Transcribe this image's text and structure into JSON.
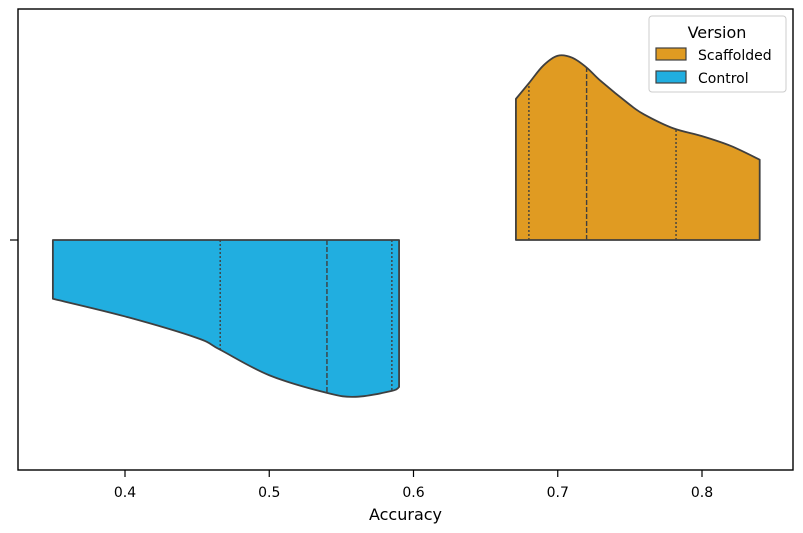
{
  "chart_data": {
    "type": "violin",
    "orientation": "horizontal",
    "split": true,
    "title": "",
    "xlabel": "Accuracy",
    "ylabel": "",
    "xlim": [
      0.326,
      0.84
    ],
    "xticks": [
      0.4,
      0.5,
      0.6,
      0.7,
      0.8
    ],
    "xtick_labels": [
      "0.4",
      "0.5",
      "0.6",
      "0.7",
      "0.8"
    ],
    "grid": false,
    "legend": {
      "title": "Version",
      "position": "top-right"
    },
    "series": [
      {
        "name": "Scaffolded",
        "color": "#E09B22",
        "side": "upper",
        "range": [
          0.671,
          0.84
        ],
        "density": [
          [
            0.671,
            0.72
          ],
          [
            0.68,
            0.8
          ],
          [
            0.69,
            0.89
          ],
          [
            0.7,
            0.94
          ],
          [
            0.71,
            0.93
          ],
          [
            0.72,
            0.88
          ],
          [
            0.73,
            0.81
          ],
          [
            0.75,
            0.69
          ],
          [
            0.76,
            0.64
          ],
          [
            0.78,
            0.57
          ],
          [
            0.8,
            0.53
          ],
          [
            0.82,
            0.48
          ],
          [
            0.84,
            0.41
          ]
        ],
        "quartiles": [
          0.68,
          0.72,
          0.782
        ]
      },
      {
        "name": "Control",
        "color": "#21AEE0",
        "side": "lower",
        "range": [
          0.35,
          0.59
        ],
        "density": [
          [
            0.35,
            0.3
          ],
          [
            0.4,
            0.39
          ],
          [
            0.45,
            0.5
          ],
          [
            0.466,
            0.56
          ],
          [
            0.5,
            0.69
          ],
          [
            0.54,
            0.78
          ],
          [
            0.56,
            0.8
          ],
          [
            0.585,
            0.77
          ],
          [
            0.59,
            0.75
          ]
        ],
        "quartiles": [
          0.466,
          0.54,
          0.585
        ]
      }
    ]
  }
}
